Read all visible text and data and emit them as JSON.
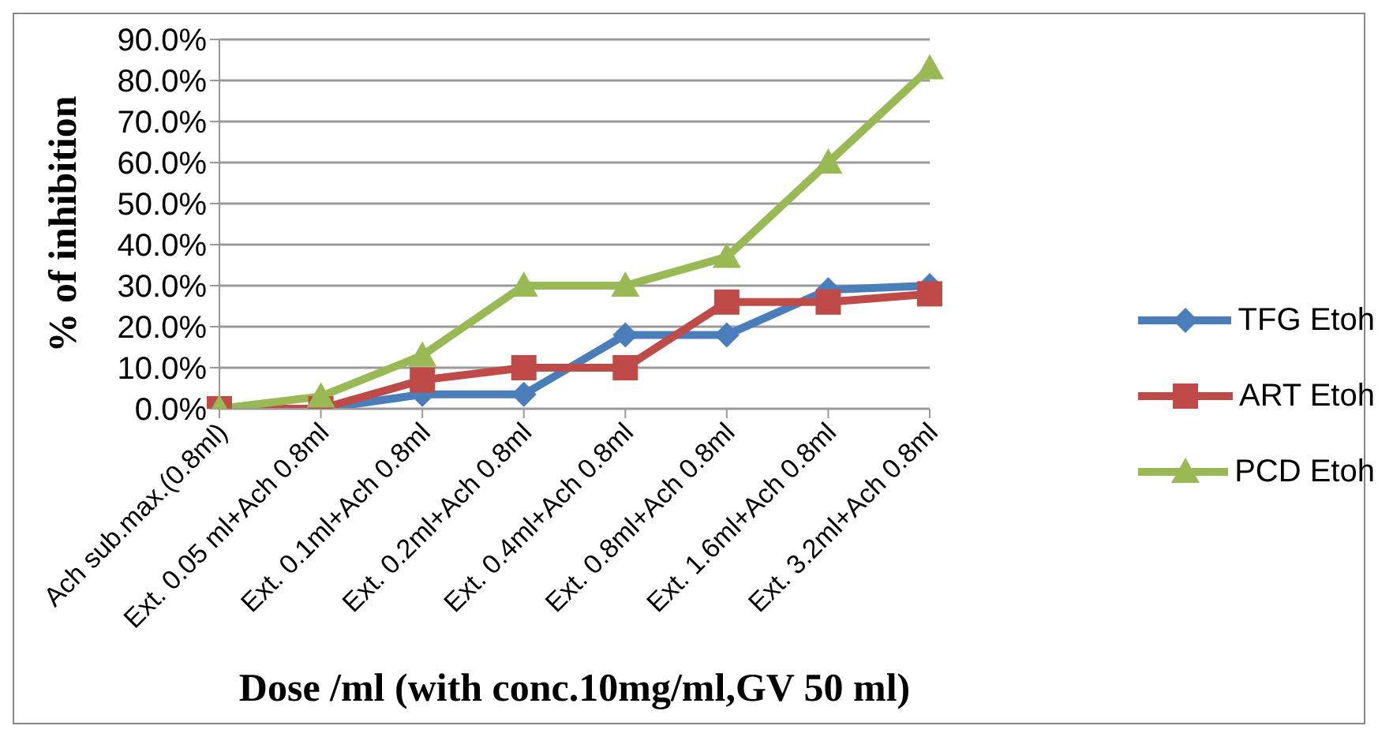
{
  "chart_data": {
    "type": "line",
    "xlabel": "Dose /ml (with conc.10mg/ml,GV 50 ml)",
    "ylabel": "% of inhibition",
    "categories": [
      "Ach sub.max.(0.8ml)",
      "Ext. 0.05 ml+Ach 0.8ml",
      "Ext. 0.1ml+Ach 0.8ml",
      "Ext. 0.2ml+Ach 0.8ml",
      "Ext. 0.4ml+Ach 0.8ml",
      "Ext. 0.8ml+Ach 0.8ml",
      "Ext. 1.6ml+Ach 0.8ml",
      "Ext. 3.2ml+Ach 0.8ml"
    ],
    "series": [
      {
        "name": "TFG Etoh",
        "color": "#4a7ebb",
        "marker": "diamond",
        "values": [
          0,
          0,
          3.5,
          3.5,
          18,
          18,
          29,
          30
        ]
      },
      {
        "name": "ART Etoh",
        "color": "#be4b48",
        "marker": "square",
        "values": [
          0,
          0,
          7,
          10,
          10,
          26,
          26,
          28
        ]
      },
      {
        "name": "PCD Etoh",
        "color": "#98b954",
        "marker": "triangle",
        "values": [
          0,
          3,
          13,
          30,
          30,
          37,
          60,
          83
        ]
      }
    ],
    "ylim": [
      0,
      90
    ],
    "yticks": [
      {
        "value": 0,
        "label": "0.0%"
      },
      {
        "value": 10,
        "label": "10.0%"
      },
      {
        "value": 20,
        "label": "20.0%"
      },
      {
        "value": 30,
        "label": "30.0%"
      },
      {
        "value": 40,
        "label": "40.0%"
      },
      {
        "value": 50,
        "label": "50.0%"
      },
      {
        "value": 60,
        "label": "60.0%"
      },
      {
        "value": 70,
        "label": "70.0%"
      },
      {
        "value": 80,
        "label": "80.0%"
      },
      {
        "value": 90,
        "label": "90.0%"
      }
    ],
    "grid": "y",
    "legend": "right",
    "line_style": "solid"
  }
}
